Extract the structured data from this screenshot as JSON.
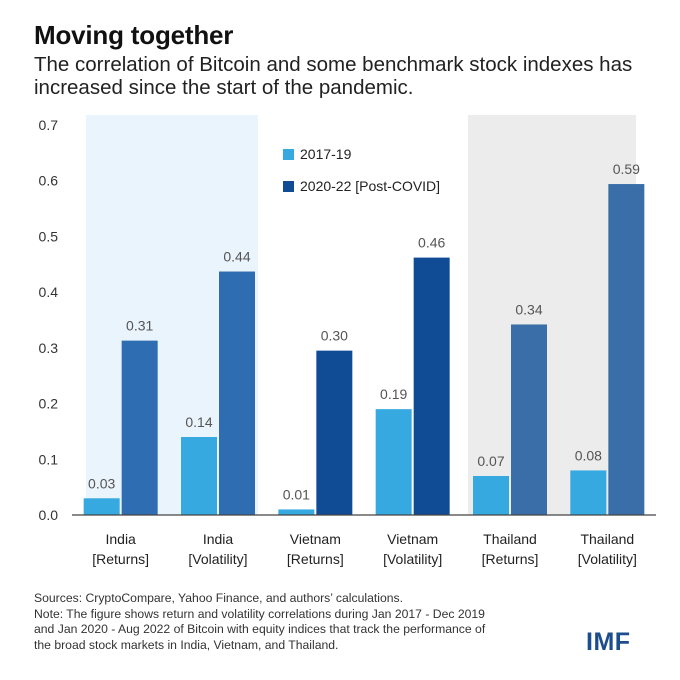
{
  "title": "Moving together",
  "subtitle": "The correlation of Bitcoin and some benchmark stock indexes has increased since the start of the pandemic.",
  "chart_data": {
    "type": "bar",
    "categories": [
      [
        "India",
        "[Returns]"
      ],
      [
        "India",
        "[Volatility]"
      ],
      [
        "Vietnam",
        "[Returns]"
      ],
      [
        "Vietnam",
        "[Volatility]"
      ],
      [
        "Thailand",
        "[Returns]"
      ],
      [
        "Thailand",
        "[Volatility]"
      ]
    ],
    "series": [
      {
        "name": "2017-19",
        "values": [
          0.03,
          0.14,
          0.01,
          0.19,
          0.07,
          0.08
        ]
      },
      {
        "name": "2020-22 [Post-COVID]",
        "values": [
          0.31,
          0.44,
          0.3,
          0.46,
          0.34,
          0.59
        ]
      }
    ],
    "value_labels": [
      [
        "0.03",
        "0.14",
        "0.01",
        "0.19",
        "0.07",
        "0.08"
      ],
      [
        "0.31",
        "0.44",
        "0.30",
        "0.46",
        "0.34",
        "0.59"
      ]
    ],
    "plot_values": [
      [
        0.03,
        0.14,
        0.01,
        0.19,
        0.07,
        0.08
      ],
      [
        0.313,
        0.437,
        0.295,
        0.462,
        0.342,
        0.594
      ]
    ],
    "ylim": [
      0,
      0.7
    ],
    "yticks": [
      "0.0",
      "0.1",
      "0.2",
      "0.3",
      "0.4",
      "0.5",
      "0.6",
      "0.7"
    ],
    "group_shading": [
      "India",
      "Thailand"
    ],
    "colors": {
      "series1": "#36a9e0",
      "india_post": "#2f6db3",
      "vietnam_post": "#0f4c95",
      "thailand_post": "#3a6ea8",
      "india_band": "#eaf4fc",
      "thailand_band": "#ececec",
      "label": "#555555",
      "axis": "#444444"
    }
  },
  "notes": {
    "sources": "Sources: CryptoCompare, Yahoo Finance, and authors’ calculations.",
    "note_lines": [
      "Note: The figure shows return and volatility correlations during Jan 2017 - Dec 2019",
      "and Jan 2020 - Aug 2022 of Bitcoin with equity indices that track the performance of",
      "the broad stock markets in India, Vietnam, and Thailand."
    ]
  },
  "logo": "IMF"
}
